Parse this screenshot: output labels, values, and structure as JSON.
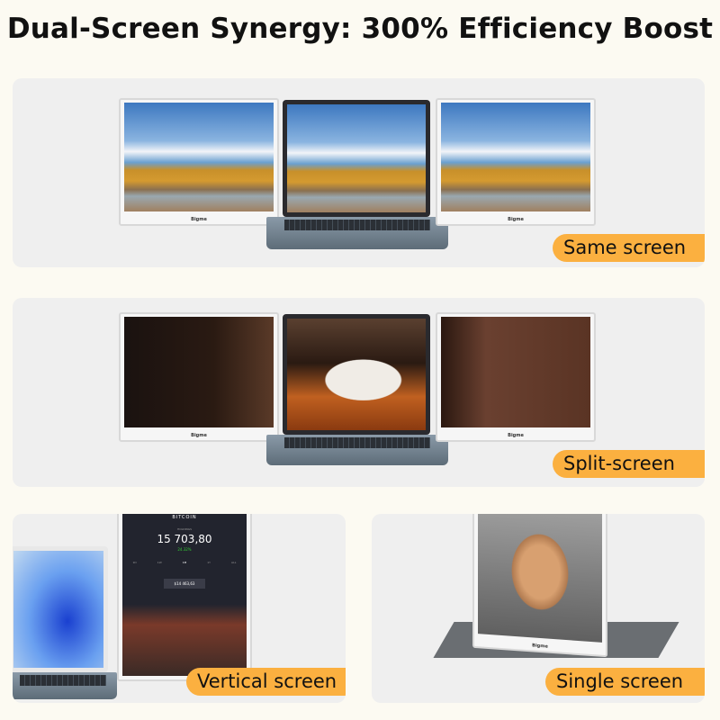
{
  "title": "Dual-Screen Synergy: 300% Efficiency Boost",
  "brand": "Bigme",
  "accent": "#fbb040",
  "panels": [
    {
      "label": "Same screen"
    },
    {
      "label": "Split-screen"
    },
    {
      "label": "Vertical screen"
    },
    {
      "label": "Single screen"
    }
  ],
  "app": {
    "name": "BITCOIN",
    "subtitle": "HOLDINGS",
    "value": "15 703,80",
    "change": "24.32%",
    "tooltip": "$14 463,63",
    "tabs": [
      "1D",
      "1W",
      "1M",
      "1Y",
      "ALL"
    ]
  }
}
